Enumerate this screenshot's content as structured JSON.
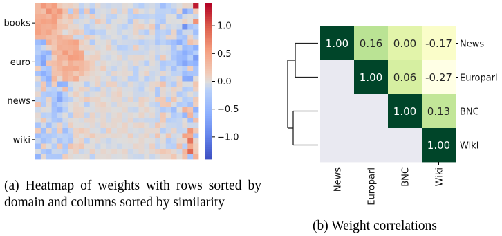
{
  "figure": {
    "caption_a": "(a) Heatmap of weights with rows sorted by domain and columns sorted by similarity",
    "caption_b": "(b) Weight correlations"
  },
  "chart_data": [
    {
      "type": "heatmap",
      "title": "",
      "row_group_labels": [
        "books",
        "euro",
        "news",
        "wiki"
      ],
      "colorbar": {
        "ticks": [
          1.0,
          0.5,
          0.0,
          -0.5,
          -1.0
        ],
        "tick_labels": [
          "1.0",
          "0.5",
          "0.0",
          "−0.5",
          "−1.0"
        ],
        "range": [
          -1.4,
          1.4
        ],
        "colormap": "coolwarm"
      },
      "n_rows": 30,
      "n_cols": 30,
      "values": [
        [
          0.34,
          0.61,
          0.46,
          0.58,
          0.18,
          0.1,
          0.12,
          0.06,
          -0.1,
          -0.02,
          -0.1,
          0.05,
          -0.05,
          -0.08,
          -0.04,
          -0.05,
          0.03,
          0.0,
          -0.09,
          -0.17,
          -0.07,
          -0.04,
          -0.1,
          -0.36,
          -0.14,
          -0.06,
          -0.01,
          0.08,
          0.06,
          1.3
        ],
        [
          0.34,
          0.26,
          0.67,
          0.48,
          0.61,
          0.24,
          -0.18,
          0.26,
          -0.25,
          0.2,
          -0.35,
          -0.04,
          -0.01,
          -0.04,
          0.1,
          -0.07,
          0.07,
          -0.14,
          0.13,
          0.01,
          -0.05,
          0.01,
          -0.12,
          -0.12,
          -0.11,
          -0.2,
          0.09,
          -0.65,
          -0.34,
          0.14
        ],
        [
          0.42,
          0.44,
          0.36,
          0.57,
          0.42,
          0.13,
          0.29,
          0.18,
          -0.1,
          -0.03,
          0.14,
          -0.04,
          0.03,
          -0.1,
          -0.12,
          -0.01,
          -0.0,
          -0.11,
          -0.17,
          -0.13,
          -0.12,
          -0.09,
          -0.14,
          -0.14,
          0.01,
          -0.0,
          -0.34,
          -0.04,
          0.01,
          -0.07
        ],
        [
          0.46,
          0.54,
          0.5,
          0.57,
          0.17,
          0.09,
          0.13,
          -0.06,
          -0.02,
          0.02,
          -0.09,
          0.2,
          0.07,
          -0.14,
          -0.01,
          0.02,
          -0.02,
          -0.22,
          0.09,
          -0.01,
          -0.08,
          0.01,
          -0.13,
          -0.23,
          0.01,
          -0.01,
          0.0,
          0.1,
          0.0,
          0.65
        ],
        [
          0.51,
          0.43,
          0.41,
          0.47,
          0.22,
          0.21,
          0.07,
          0.06,
          -0.02,
          -0.15,
          -0.06,
          -0.01,
          -0.03,
          0.06,
          -0.01,
          -0.07,
          -0.13,
          -0.04,
          0.09,
          0.12,
          0.03,
          0.17,
          -0.31,
          0.05,
          -0.09,
          -0.03,
          -0.07,
          -0.84,
          -0.3,
          -0.16
        ],
        [
          0.55,
          0.42,
          0.5,
          0.29,
          0.19,
          -0.01,
          0.09,
          0.2,
          0.11,
          -0.13,
          -0.26,
          -0.11,
          -0.12,
          0.0,
          -0.01,
          -0.08,
          -0.01,
          -0.03,
          0.09,
          -0.09,
          -0.19,
          0.06,
          -0.17,
          -0.11,
          -0.2,
          0.09,
          -0.36,
          -0.06,
          -0.05,
          -0.36
        ],
        [
          0.39,
          0.39,
          0.29,
          0.27,
          0.41,
          0.29,
          0.26,
          -0.07,
          -0.07,
          0.16,
          0.08,
          -0.0,
          -0.08,
          -0.05,
          0.0,
          -0.02,
          -0.12,
          -0.03,
          0.02,
          0.06,
          -0.02,
          -0.01,
          -0.16,
          -0.09,
          0.08,
          0.06,
          -0.22,
          -0.32,
          0.09,
          -0.11
        ],
        [
          -0.39,
          -0.54,
          0.42,
          0.22,
          0.38,
          0.42,
          0.47,
          0.53,
          0.14,
          0.04,
          -0.21,
          0.02,
          -0.01,
          0.06,
          -0.11,
          -0.03,
          -0.05,
          -0.06,
          -0.08,
          -0.15,
          -0.09,
          -0.06,
          -0.25,
          -0.12,
          -0.24,
          -0.36,
          -0.57,
          -0.21,
          0.24,
          0.12
        ],
        [
          -0.21,
          -0.07,
          0.09,
          0.19,
          0.43,
          0.4,
          0.42,
          0.45,
          0.07,
          0.09,
          0.07,
          -0.03,
          -0.0,
          0.12,
          -0.04,
          -0.16,
          -0.14,
          -0.08,
          0.13,
          -0.04,
          -0.09,
          -0.03,
          -0.06,
          -0.01,
          -0.03,
          -0.28,
          -0.04,
          -0.39,
          -0.31,
          -0.55
        ],
        [
          -0.15,
          -0.39,
          -0.5,
          0.35,
          0.31,
          0.59,
          0.38,
          0.53,
          0.48,
          -0.03,
          0.02,
          0.09,
          0.01,
          -0.02,
          0.02,
          -0.04,
          -0.08,
          -0.07,
          -0.07,
          -0.08,
          -0.05,
          0.03,
          -0.06,
          -0.03,
          -0.06,
          -0.2,
          -0.36,
          -0.58,
          -0.4,
          -0.15
        ],
        [
          -0.34,
          -0.6,
          -0.2,
          0.12,
          0.41,
          0.38,
          0.58,
          0.56,
          0.49,
          0.07,
          0.11,
          0.12,
          -0.03,
          -0.06,
          0.0,
          0.07,
          -0.07,
          0.04,
          0.06,
          0.06,
          -0.01,
          0.04,
          -0.13,
          0.17,
          -0.03,
          -0.27,
          -0.41,
          -0.47,
          -0.14,
          -0.73
        ],
        [
          -0.3,
          -0.68,
          0.23,
          0.28,
          0.37,
          0.21,
          0.43,
          0.32,
          0.35,
          0.24,
          0.13,
          -0.03,
          0.06,
          -0.0,
          -0.02,
          -0.04,
          0.02,
          -0.05,
          0.05,
          -0.04,
          -0.16,
          0.03,
          -0.04,
          -0.23,
          -0.15,
          -0.12,
          -0.43,
          -0.65,
          -0.43,
          -0.52
        ],
        [
          0.14,
          -0.19,
          -0.29,
          0.22,
          0.34,
          0.47,
          0.45,
          0.48,
          0.34,
          0.25,
          0.11,
          0.04,
          0.15,
          -0.03,
          -0.09,
          -0.02,
          0.04,
          -0.06,
          -0.14,
          -0.02,
          0.02,
          -0.03,
          -0.04,
          -0.19,
          -0.05,
          -0.32,
          -0.08,
          -0.16,
          0.13,
          -0.28
        ],
        [
          -0.32,
          -0.56,
          -0.35,
          0.24,
          0.24,
          0.41,
          0.34,
          0.18,
          0.3,
          0.12,
          0.06,
          0.03,
          0.0,
          -0.08,
          0.07,
          0.02,
          0.05,
          0.03,
          -0.14,
          0.02,
          0.1,
          -0.08,
          -0.04,
          0.06,
          -0.03,
          -0.12,
          -0.11,
          -0.39,
          -0.3,
          -0.27
        ],
        [
          0.05,
          -0.29,
          -0.55,
          0.35,
          0.06,
          0.4,
          0.3,
          0.44,
          0.07,
          0.07,
          0.03,
          0.08,
          -0.02,
          0.03,
          -0.1,
          -0.03,
          0.03,
          -0.14,
          -0.13,
          -0.01,
          -0.16,
          -0.07,
          0.0,
          -0.21,
          -0.08,
          -0.04,
          0.06,
          -0.6,
          -0.62,
          0.02
        ],
        [
          -0.12,
          0.19,
          -0.36,
          0.14,
          -0.55,
          -0.5,
          -0.04,
          0.02,
          0.01,
          -0.17,
          -0.01,
          0.1,
          -0.08,
          0.11,
          0.11,
          -0.05,
          -0.09,
          0.04,
          -0.04,
          -0.09,
          -0.04,
          0.06,
          0.09,
          0.24,
          -0.08,
          -0.21,
          0.11,
          -0.02,
          -0.02,
          0.21
        ],
        [
          -0.05,
          0.25,
          -0.1,
          -0.15,
          -0.06,
          0.29,
          -0.14,
          0.02,
          0.11,
          0.09,
          -0.09,
          -0.14,
          0.04,
          -0.06,
          0.02,
          0.08,
          -0.02,
          -0.02,
          -0.06,
          -0.13,
          -0.0,
          0.06,
          -0.23,
          0.06,
          -0.02,
          0.1,
          0.04,
          -0.2,
          -0.14,
          0.12
        ],
        [
          0.07,
          -0.2,
          -0.26,
          -0.19,
          -0.53,
          -0.14,
          0.02,
          0.12,
          0.02,
          -0.09,
          -0.02,
          0.02,
          0.07,
          -0.05,
          0.07,
          0.12,
          -0.01,
          0.02,
          -0.06,
          -0.06,
          -0.04,
          0.01,
          -0.25,
          0.05,
          -0.05,
          0.06,
          -0.2,
          -0.1,
          0.02,
          -0.07
        ],
        [
          -0.1,
          -0.16,
          0.09,
          -0.26,
          -0.65,
          -0.24,
          -0.13,
          -0.01,
          0.07,
          0.18,
          0.08,
          0.09,
          0.0,
          -0.01,
          0.06,
          0.06,
          -0.06,
          0.09,
          -0.08,
          0.11,
          0.07,
          -0.02,
          0.15,
          0.17,
          -0.15,
          0.21,
          0.01,
          -0.18,
          -0.12,
          0.18
        ],
        [
          0.24,
          -0.2,
          0.04,
          -0.37,
          -0.18,
          -0.08,
          0.01,
          0.07,
          0.01,
          -0.18,
          -0.01,
          0.07,
          0.11,
          0.02,
          -0.06,
          0.06,
          0.03,
          -0.01,
          0.01,
          0.1,
          0.0,
          -0.08,
          -0.13,
          0.17,
          0.2,
          -0.02,
          -0.2,
          -0.14,
          -0.34,
          0.13
        ],
        [
          -0.07,
          0.03,
          -0.01,
          -0.32,
          -0.49,
          -0.15,
          -0.0,
          0.09,
          0.08,
          0.01,
          -0.02,
          0.04,
          0.06,
          0.04,
          0.01,
          -0.01,
          0.06,
          -0.07,
          -0.09,
          0.03,
          0.09,
          0.01,
          -0.06,
          -0.22,
          -0.12,
          -0.39,
          0.0,
          0.39,
          0.22,
          -0.53
        ],
        [
          0.05,
          -0.14,
          -0.11,
          -0.3,
          -0.1,
          0.01,
          -0.18,
          0.11,
          0.09,
          -0.1,
          0.1,
          -0.04,
          0.05,
          -0.06,
          0.03,
          0.08,
          -0.03,
          0.04,
          0.0,
          0.09,
          -0.02,
          0.05,
          -0.08,
          0.2,
          0.02,
          -0.2,
          -0.12,
          -0.47,
          0.36,
          -0.13
        ],
        [
          0.01,
          0.18,
          -0.06,
          -0.25,
          -0.31,
          -0.05,
          0.03,
          0.01,
          -0.03,
          0.07,
          0.07,
          0.01,
          0.06,
          -0.05,
          0.06,
          0.06,
          -0.04,
          0.08,
          -0.08,
          -0.05,
          -0.08,
          -0.07,
          -0.11,
          0.17,
          -0.15,
          -0.12,
          -0.09,
          0.02,
          -0.38,
          0.28
        ],
        [
          -0.3,
          -0.05,
          -0.35,
          -0.07,
          0.1,
          -0.11,
          0.12,
          0.01,
          0.02,
          -0.02,
          0.05,
          -0.04,
          0.08,
          0.03,
          0.06,
          0.01,
          0.1,
          -0.01,
          0.07,
          0.1,
          0.02,
          -0.05,
          0.19,
          0.05,
          -0.07,
          -0.08,
          -0.1,
          0.04,
          -0.06,
          -0.06
        ],
        [
          0.17,
          -0.36,
          0.09,
          -0.2,
          0.15,
          -0.38,
          -0.1,
          0.1,
          0.17,
          0.1,
          -0.02,
          -0.01,
          -0.1,
          0.14,
          -0.02,
          0.06,
          0.08,
          -0.03,
          -0.01,
          -0.04,
          0.04,
          0.05,
          0.05,
          -0.17,
          -0.06,
          0.08,
          -0.1,
          -0.08,
          0.63,
          0.19
        ],
        [
          -0.36,
          -0.2,
          -0.24,
          -0.18,
          -0.1,
          -0.13,
          -0.19,
          0.1,
          0.01,
          0.07,
          0.17,
          0.04,
          0.06,
          0.03,
          0.06,
          0.04,
          -0.01,
          0.13,
          -0.04,
          0.04,
          0.09,
          -0.05,
          0.23,
          -0.0,
          0.2,
          -0.05,
          -0.02,
          0.53,
          0.47,
          -0.28
        ],
        [
          -0.09,
          -0.34,
          -0.21,
          -0.04,
          -0.28,
          -0.12,
          -0.27,
          0.03,
          0.1,
          -0.14,
          -0.0,
          0.05,
          -0.03,
          -0.09,
          -0.02,
          0.0,
          0.01,
          0.03,
          0.0,
          0.06,
          -0.0,
          0.02,
          -0.07,
          0.03,
          -0.2,
          -0.09,
          0.06,
          0.08,
          0.86,
          0.08
        ],
        [
          -0.37,
          0.14,
          -0.01,
          -0.18,
          0.19,
          -0.24,
          0.23,
          0.12,
          0.2,
          0.02,
          0.02,
          -0.08,
          0.0,
          -0.05,
          -0.02,
          -0.07,
          -0.01,
          -0.02,
          0.08,
          0.05,
          -0.03,
          0.12,
          -0.1,
          -0.02,
          -0.12,
          -0.15,
          0.27,
          -0.16,
          0.48,
          0.14
        ],
        [
          -0.01,
          -0.24,
          -0.35,
          -0.07,
          -0.08,
          -0.17,
          0.03,
          0.11,
          -0.08,
          -0.03,
          0.11,
          -0.02,
          0.07,
          0.02,
          0.07,
          0.02,
          0.08,
          -0.07,
          -0.02,
          0.05,
          -0.01,
          0.06,
          0.11,
          0.2,
          0.13,
          0.05,
          -0.06,
          0.35,
          0.92,
          0.17
        ],
        [
          -0.51,
          0.05,
          -0.23,
          -0.24,
          -0.25,
          0.14,
          0.04,
          -0.01,
          0.01,
          0.03,
          -0.13,
          0.03,
          0.03,
          0.04,
          -0.02,
          -0.01,
          0.03,
          -0.04,
          -0.07,
          -0.08,
          0.02,
          -0.08,
          -0.02,
          0.06,
          0.07,
          0.2,
          0.02,
          0.26,
          -0.3,
          0.4
        ]
      ]
    },
    {
      "type": "heatmap",
      "title": "",
      "labels": [
        "News",
        "Europarl",
        "BNC",
        "Wiki"
      ],
      "dendrogram": true,
      "upper_triangle": [
        [
          1.0,
          0.16,
          0.0,
          -0.17
        ],
        [
          null,
          1.0,
          0.06,
          -0.27
        ],
        [
          null,
          null,
          1.0,
          0.13
        ],
        [
          null,
          null,
          null,
          1.0
        ]
      ],
      "value_labels": [
        [
          "1.00",
          "0.16",
          "0.00",
          "-0.17"
        ],
        [
          null,
          "1.00",
          "0.06",
          "-0.27"
        ],
        [
          null,
          null,
          "1.00",
          "0.13"
        ],
        [
          null,
          null,
          null,
          "1.00"
        ]
      ],
      "colormap": "YlGn",
      "masked_color": "#e9e9f1"
    }
  ]
}
